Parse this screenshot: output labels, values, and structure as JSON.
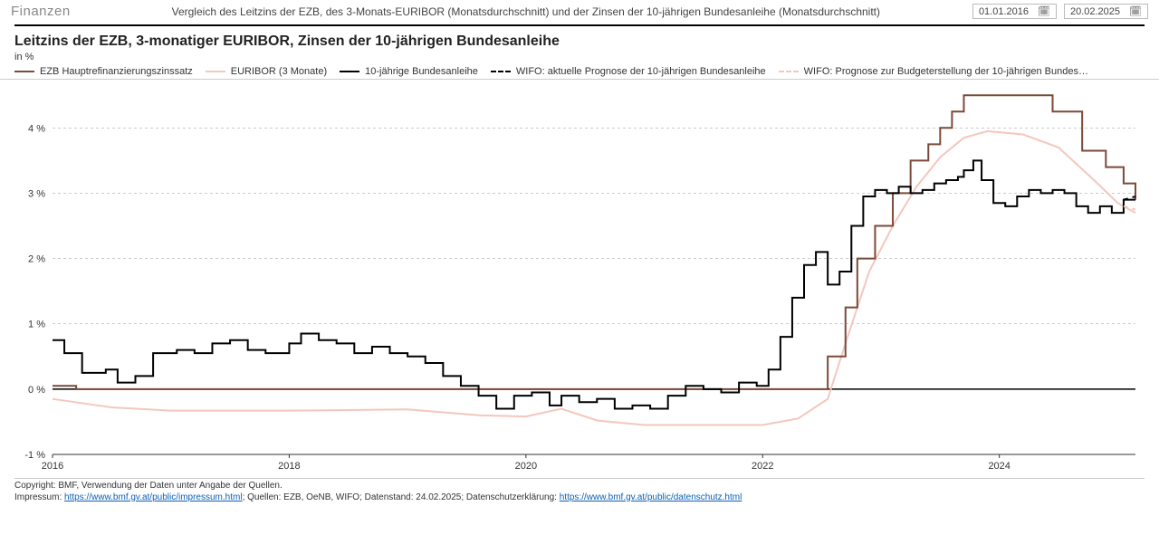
{
  "header": {
    "brand": "Finanzen",
    "subtitle": "Vergleich des Leitzins der EZB, des 3-Monats-EURIBOR (Monatsdurchschnitt) und der Zinsen der 10-jährigen Bundesanleihe (Monatsdurchschnitt)",
    "date_from": "01.01.2016",
    "date_to": "20.02.2025"
  },
  "chart": {
    "title": "Leitzins der EZB, 3-monatiger EURIBOR, Zinsen der 10-jährigen Bundesanleihe",
    "unit": "in %",
    "type": "line-step",
    "background_color": "#ffffff",
    "grid_color": "#999999",
    "axis_font_size": 11,
    "title_font_size": 16,
    "y": {
      "min": -1,
      "max": 4.6,
      "ticks": [
        -1,
        0,
        1,
        2,
        3,
        4
      ],
      "tick_labels": [
        "-1 %",
        "0 %",
        "1 %",
        "2 %",
        "3 %",
        "4 %"
      ]
    },
    "x": {
      "min": 2016.0,
      "max": 2025.15,
      "ticks": [
        2016,
        2018,
        2020,
        2022,
        2024
      ],
      "tick_labels": [
        "2016",
        "2018",
        "2020",
        "2022",
        "2024"
      ]
    },
    "legend": [
      {
        "label": "EZB Hauptrefinanzierungszinssatz",
        "color": "#7a4a3a",
        "dash": false,
        "width": 2
      },
      {
        "label": "EURIBOR (3 Monate)",
        "color": "#f3c7bd",
        "dash": false,
        "width": 2
      },
      {
        "label": "10-jährige Bundesanleihe",
        "color": "#000000",
        "dash": false,
        "width": 2
      },
      {
        "label": "WIFO: aktuelle Prognose der 10-jährigen Bundesanleihe",
        "color": "#000000",
        "dash": true,
        "width": 2
      },
      {
        "label": "WIFO: Prognose zur Budgeterstellung der 10-jährigen Bundes…",
        "color": "#f3c7bd",
        "dash": true,
        "width": 2
      }
    ],
    "series": {
      "ezb": {
        "color": "#7a4a3a",
        "width": 2,
        "dash": false,
        "step": true,
        "points": [
          [
            2016.0,
            0.05
          ],
          [
            2016.2,
            0.0
          ],
          [
            2019.1,
            0.0
          ],
          [
            2022.55,
            0.0
          ],
          [
            2022.55,
            0.5
          ],
          [
            2022.7,
            1.25
          ],
          [
            2022.8,
            2.0
          ],
          [
            2022.95,
            2.5
          ],
          [
            2023.1,
            3.0
          ],
          [
            2023.25,
            3.5
          ],
          [
            2023.4,
            3.75
          ],
          [
            2023.5,
            4.0
          ],
          [
            2023.6,
            4.25
          ],
          [
            2023.7,
            4.5
          ],
          [
            2024.4,
            4.5
          ],
          [
            2024.45,
            4.25
          ],
          [
            2024.7,
            3.65
          ],
          [
            2024.9,
            3.4
          ],
          [
            2025.05,
            3.15
          ],
          [
            2025.15,
            2.9
          ]
        ]
      },
      "euribor": {
        "color": "#f3c7bd",
        "width": 2,
        "dash": false,
        "step": false,
        "points": [
          [
            2016.0,
            -0.15
          ],
          [
            2016.5,
            -0.28
          ],
          [
            2017.0,
            -0.33
          ],
          [
            2018.0,
            -0.33
          ],
          [
            2019.0,
            -0.31
          ],
          [
            2019.6,
            -0.4
          ],
          [
            2020.0,
            -0.42
          ],
          [
            2020.3,
            -0.3
          ],
          [
            2020.6,
            -0.48
          ],
          [
            2021.0,
            -0.55
          ],
          [
            2021.5,
            -0.55
          ],
          [
            2022.0,
            -0.55
          ],
          [
            2022.3,
            -0.45
          ],
          [
            2022.55,
            -0.15
          ],
          [
            2022.7,
            0.7
          ],
          [
            2022.9,
            1.8
          ],
          [
            2023.1,
            2.5
          ],
          [
            2023.3,
            3.1
          ],
          [
            2023.5,
            3.55
          ],
          [
            2023.7,
            3.85
          ],
          [
            2023.9,
            3.95
          ],
          [
            2024.2,
            3.9
          ],
          [
            2024.5,
            3.7
          ],
          [
            2024.8,
            3.2
          ],
          [
            2025.0,
            2.85
          ],
          [
            2025.15,
            2.7
          ]
        ]
      },
      "bund10y": {
        "color": "#000000",
        "width": 2,
        "dash": false,
        "step": true,
        "points": [
          [
            2016.0,
            0.75
          ],
          [
            2016.1,
            0.55
          ],
          [
            2016.25,
            0.25
          ],
          [
            2016.45,
            0.3
          ],
          [
            2016.55,
            0.1
          ],
          [
            2016.7,
            0.2
          ],
          [
            2016.85,
            0.55
          ],
          [
            2017.05,
            0.6
          ],
          [
            2017.2,
            0.55
          ],
          [
            2017.35,
            0.7
          ],
          [
            2017.5,
            0.75
          ],
          [
            2017.65,
            0.6
          ],
          [
            2017.8,
            0.55
          ],
          [
            2018.0,
            0.7
          ],
          [
            2018.1,
            0.85
          ],
          [
            2018.25,
            0.75
          ],
          [
            2018.4,
            0.7
          ],
          [
            2018.55,
            0.55
          ],
          [
            2018.7,
            0.65
          ],
          [
            2018.85,
            0.55
          ],
          [
            2019.0,
            0.5
          ],
          [
            2019.15,
            0.4
          ],
          [
            2019.3,
            0.2
          ],
          [
            2019.45,
            0.05
          ],
          [
            2019.6,
            -0.1
          ],
          [
            2019.75,
            -0.3
          ],
          [
            2019.9,
            -0.1
          ],
          [
            2020.05,
            -0.05
          ],
          [
            2020.2,
            -0.25
          ],
          [
            2020.3,
            -0.1
          ],
          [
            2020.45,
            -0.2
          ],
          [
            2020.6,
            -0.15
          ],
          [
            2020.75,
            -0.3
          ],
          [
            2020.9,
            -0.25
          ],
          [
            2021.05,
            -0.3
          ],
          [
            2021.2,
            -0.1
          ],
          [
            2021.35,
            0.05
          ],
          [
            2021.5,
            0.0
          ],
          [
            2021.65,
            -0.05
          ],
          [
            2021.8,
            0.1
          ],
          [
            2021.95,
            0.05
          ],
          [
            2022.05,
            0.3
          ],
          [
            2022.15,
            0.8
          ],
          [
            2022.25,
            1.4
          ],
          [
            2022.35,
            1.9
          ],
          [
            2022.45,
            2.1
          ],
          [
            2022.55,
            1.6
          ],
          [
            2022.65,
            1.8
          ],
          [
            2022.75,
            2.5
          ],
          [
            2022.85,
            2.95
          ],
          [
            2022.95,
            3.05
          ],
          [
            2023.05,
            3.0
          ],
          [
            2023.15,
            3.1
          ],
          [
            2023.25,
            3.0
          ],
          [
            2023.35,
            3.05
          ],
          [
            2023.45,
            3.15
          ],
          [
            2023.55,
            3.2
          ],
          [
            2023.65,
            3.25
          ],
          [
            2023.7,
            3.35
          ],
          [
            2023.78,
            3.5
          ],
          [
            2023.85,
            3.2
          ],
          [
            2023.95,
            2.85
          ],
          [
            2024.05,
            2.8
          ],
          [
            2024.15,
            2.95
          ],
          [
            2024.25,
            3.05
          ],
          [
            2024.35,
            3.0
          ],
          [
            2024.45,
            3.05
          ],
          [
            2024.55,
            3.0
          ],
          [
            2024.65,
            2.8
          ],
          [
            2024.75,
            2.7
          ],
          [
            2024.85,
            2.8
          ],
          [
            2024.95,
            2.7
          ],
          [
            2025.05,
            2.9
          ],
          [
            2025.15,
            2.9
          ]
        ]
      },
      "wifo_current": {
        "color": "#000000",
        "width": 2,
        "dash": true,
        "step": false,
        "points": [
          [
            2025.05,
            2.9
          ],
          [
            2025.15,
            2.95
          ]
        ]
      },
      "wifo_budget": {
        "color": "#f3c7bd",
        "width": 2,
        "dash": true,
        "step": false,
        "points": [
          [
            2025.05,
            2.8
          ],
          [
            2025.15,
            2.75
          ]
        ]
      }
    }
  },
  "footer": {
    "copyright": "Copyright: BMF, Verwendung der Daten unter Angabe der Quellen.",
    "impressum_label": "Impressum:",
    "impressum_link_text": "https://www.bmf.gv.at/public/impressum.html",
    "sources": "; Quellen: EZB, OeNB, WIFO; Datenstand: 24.02.2025; Datenschutzerklärung:",
    "privacy_link_text": "https://www.bmf.gv.at/public/datenschutz.html"
  }
}
